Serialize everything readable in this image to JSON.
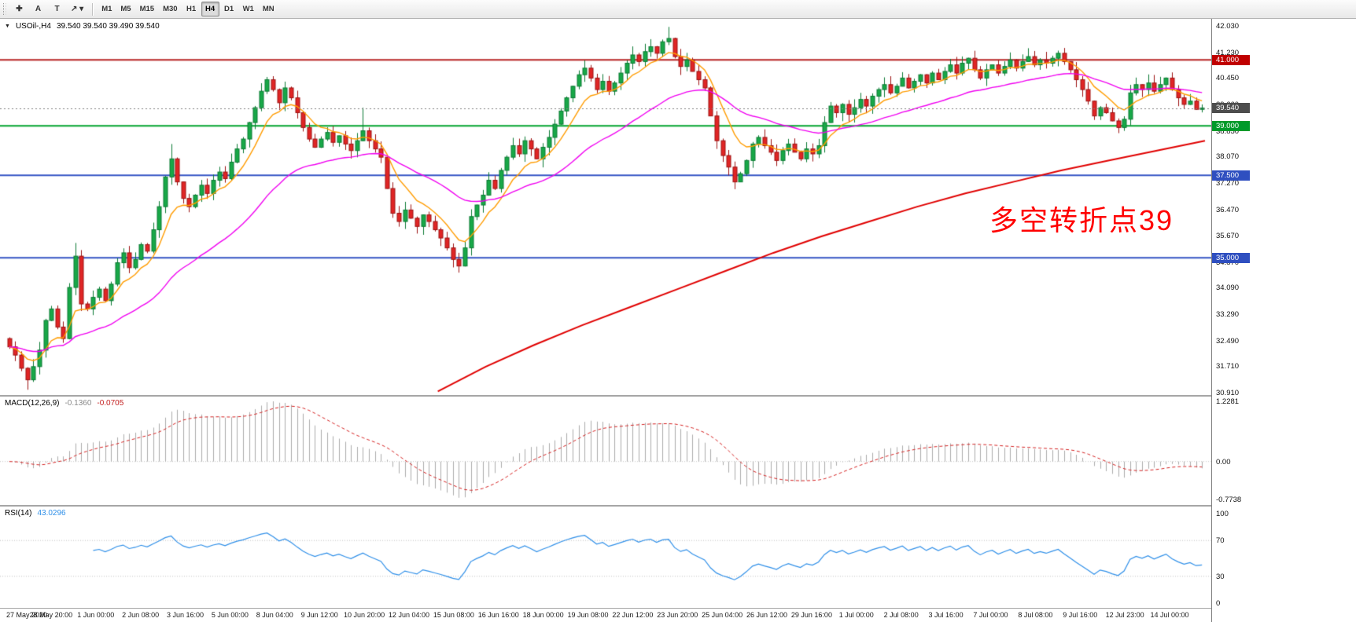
{
  "toolbar": {
    "tools": [
      {
        "id": "crosshair",
        "glyph": "✚"
      },
      {
        "id": "text-annotation",
        "glyph": "A"
      },
      {
        "id": "text-label",
        "glyph": "T"
      },
      {
        "id": "arrow-objects",
        "glyph": "↗",
        "dropdown": "▾"
      }
    ],
    "timeframes": [
      "M1",
      "M5",
      "M15",
      "M30",
      "H1",
      "H4",
      "D1",
      "W1",
      "MN"
    ],
    "active_timeframe": "H4"
  },
  "chart": {
    "collapse_arrow": "▼",
    "symbol_title": "USOil-,H4",
    "ohlc": "39.540 39.540 39.490 39.540",
    "annotation": "多空转折点39",
    "price_max": 42.03,
    "price_min": 30.91,
    "y_ticks": [
      "42.030",
      "41.230",
      "40.450",
      "39.660",
      "38.850",
      "38.070",
      "37.270",
      "36.470",
      "35.670",
      "34.870",
      "34.090",
      "33.290",
      "32.490",
      "31.710",
      "30.910"
    ],
    "x_labels": [
      "27 May 2020",
      "28 May 20:00",
      "1 Jun 00:00",
      "2 Jun 08:00",
      "3 Jun 16:00",
      "5 Jun 00:00",
      "8 Jun 04:00",
      "9 Jun 12:00",
      "10 Jun 20:00",
      "12 Jun 04:00",
      "15 Jun 08:00",
      "16 Jun 16:00",
      "18 Jun 00:00",
      "19 Jun 08:00",
      "22 Jun 12:00",
      "23 Jun 20:00",
      "25 Jun 04:00",
      "26 Jun 12:00",
      "29 Jun 16:00",
      "1 Jul 00:00",
      "2 Jul 08:00",
      "3 Jul 16:00",
      "7 Jul 00:00",
      "8 Jul 08:00",
      "9 Jul 16:00",
      "12 Jul 23:00",
      "14 Jul 00:00"
    ],
    "levels": [
      {
        "price": 41.0,
        "label": "41.000",
        "color": "#b82424",
        "flag": "#c00000"
      },
      {
        "price": 39.0,
        "label": "39.000",
        "color": "#00a32e",
        "flag": "#009a2a"
      },
      {
        "price": 37.5,
        "label": "37.500",
        "color": "#3353c4",
        "flag": "#2f4fc0"
      },
      {
        "price": 35.0,
        "label": "35.000",
        "color": "#3353c4",
        "flag": "#2f4fc0"
      }
    ],
    "current_price": {
      "value": 39.54,
      "label": "39.540",
      "flag": "#4d4d4d"
    },
    "colors": {
      "bull_fill": "#18a848",
      "bull_stroke": "#0b7a33",
      "bear_fill": "#e02525",
      "bear_stroke": "#9c1212",
      "ma_fast": "#ff9c00",
      "ma_mid": "#f000f0",
      "ma_long": "#e00000",
      "annotation": "#ff0000"
    }
  },
  "chart_data": {
    "type": "candlestick",
    "symbol": "USOil",
    "timeframe": "H4",
    "main": {
      "first_open": 32.55,
      "closes": [
        32.3,
        32.05,
        31.65,
        31.3,
        31.7,
        32.2,
        33.1,
        33.45,
        32.9,
        32.55,
        34.1,
        35.05,
        33.6,
        33.45,
        33.8,
        34.05,
        33.7,
        34.2,
        34.85,
        35.15,
        34.7,
        34.95,
        35.4,
        35.2,
        35.85,
        36.55,
        37.45,
        38.0,
        37.3,
        36.8,
        36.55,
        36.9,
        37.2,
        36.95,
        37.35,
        37.6,
        37.4,
        37.9,
        38.3,
        38.6,
        39.1,
        39.55,
        40.05,
        40.4,
        40.1,
        39.7,
        40.15,
        39.85,
        39.4,
        38.95,
        38.6,
        38.35,
        38.6,
        38.8,
        38.5,
        38.7,
        38.45,
        38.25,
        38.55,
        38.85,
        38.55,
        38.3,
        38.05,
        37.1,
        36.35,
        36.1,
        36.45,
        36.2,
        35.95,
        36.3,
        36.1,
        35.85,
        35.6,
        35.3,
        34.95,
        34.75,
        35.3,
        36.25,
        36.6,
        36.9,
        37.35,
        37.1,
        37.65,
        38.05,
        38.4,
        38.15,
        38.55,
        38.3,
        38.0,
        38.35,
        38.65,
        39.05,
        39.45,
        39.85,
        40.2,
        40.55,
        40.75,
        40.45,
        40.1,
        40.35,
        40.05,
        40.3,
        40.6,
        40.9,
        41.15,
        40.95,
        41.25,
        41.4,
        41.2,
        41.55,
        41.65,
        41.1,
        40.8,
        41.0,
        40.65,
        40.4,
        40.15,
        39.3,
        38.55,
        38.1,
        37.75,
        37.3,
        37.55,
        37.95,
        38.45,
        38.65,
        38.4,
        38.2,
        37.95,
        38.25,
        38.45,
        38.2,
        38.0,
        38.3,
        38.15,
        38.4,
        39.1,
        39.6,
        39.4,
        39.65,
        39.35,
        39.55,
        39.8,
        39.6,
        39.9,
        40.1,
        40.25,
        40.0,
        40.2,
        40.45,
        40.15,
        40.35,
        40.55,
        40.3,
        40.6,
        40.4,
        40.65,
        40.85,
        40.6,
        40.9,
        41.05,
        40.7,
        40.45,
        40.7,
        40.85,
        40.6,
        40.8,
        41.0,
        40.75,
        40.95,
        41.1,
        40.85,
        41.0,
        40.9,
        41.05,
        41.2,
        40.95,
        40.7,
        40.4,
        40.1,
        39.75,
        39.3,
        39.55,
        39.4,
        39.15,
        38.95,
        39.2,
        40.0,
        40.25,
        40.1,
        40.3,
        40.05,
        40.25,
        40.45,
        40.1,
        39.85,
        39.65,
        39.75,
        39.5,
        39.54
      ],
      "wick_high_overrides": {
        "11": 35.45,
        "27": 38.45,
        "59": 39.55,
        "110": 42.0,
        "175": 41.28
      },
      "wick_low_overrides": {
        "3": 31.0,
        "75": 34.55,
        "121": 37.08,
        "185": 38.78
      }
    },
    "ma_fast_period": 8,
    "ma_mid_period": 32,
    "ma_long_points": [
      [
        0.36,
        30.95
      ],
      [
        0.4,
        31.7
      ],
      [
        0.44,
        32.35
      ],
      [
        0.48,
        32.95
      ],
      [
        0.52,
        33.5
      ],
      [
        0.56,
        34.05
      ],
      [
        0.6,
        34.6
      ],
      [
        0.64,
        35.15
      ],
      [
        0.68,
        35.65
      ],
      [
        0.72,
        36.1
      ],
      [
        0.76,
        36.55
      ],
      [
        0.8,
        36.95
      ],
      [
        0.84,
        37.3
      ],
      [
        0.88,
        37.65
      ],
      [
        0.92,
        37.95
      ],
      [
        0.96,
        38.25
      ],
      [
        1.0,
        38.55
      ]
    ],
    "macd": {
      "label": "MACD(12,26,9)",
      "value_main": "-0.1360",
      "value_signal": "-0.0705",
      "fast": 12,
      "slow": 26,
      "signal": 9,
      "max": 1.2281,
      "min": -0.7738,
      "ticks": [
        {
          "v": 1.2281,
          "label": "1.2281"
        },
        {
          "v": 0,
          "label": "0.00"
        },
        {
          "v": -0.7738,
          "label": "-0.7738"
        }
      ]
    },
    "rsi": {
      "label": "RSI(14)",
      "value": "43.0296",
      "period": 14,
      "levels": [
        70,
        30
      ],
      "ticks": [
        {
          "v": 100,
          "label": "100"
        },
        {
          "v": 70,
          "label": "70"
        },
        {
          "v": 30,
          "label": "30"
        },
        {
          "v": 0,
          "label": "0"
        }
      ]
    }
  }
}
